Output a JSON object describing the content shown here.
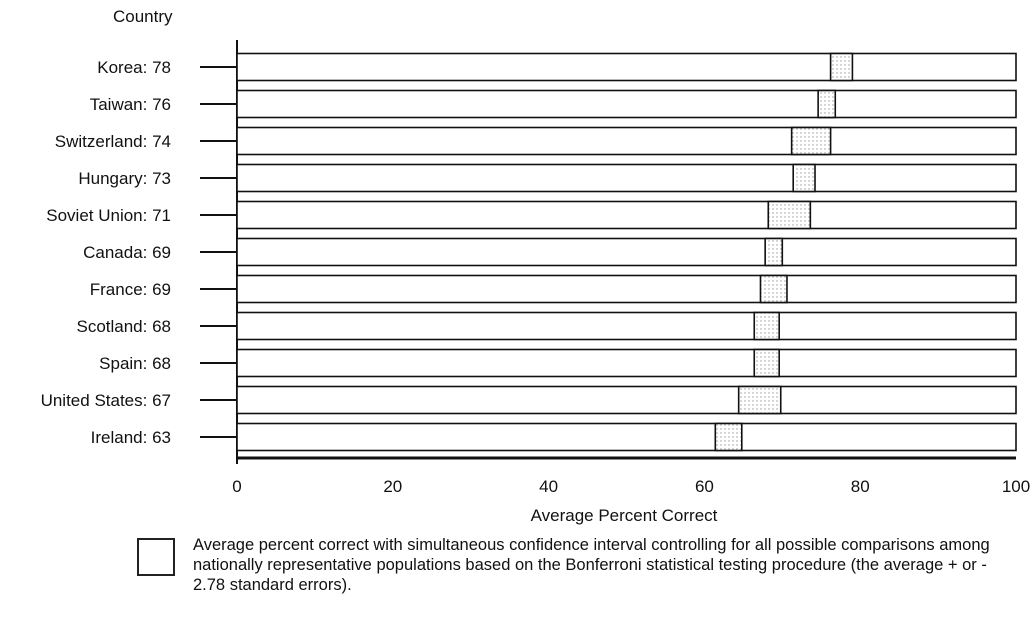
{
  "chart_data": {
    "type": "bar",
    "ylabel": "Country",
    "xlabel": "Average Percent Correct",
    "xlim": [
      0,
      100
    ],
    "xticks": [
      "0",
      "20",
      "40",
      "60",
      "80",
      "100"
    ],
    "categories": [
      {
        "label": "Korea: 78",
        "mean": 78,
        "low": 76.2,
        "high": 79.0
      },
      {
        "label": "Taiwan: 76",
        "mean": 76,
        "low": 74.6,
        "high": 76.8
      },
      {
        "label": "Switzerland: 74",
        "mean": 74,
        "low": 71.2,
        "high": 76.2
      },
      {
        "label": "Hungary: 73",
        "mean": 73,
        "low": 71.4,
        "high": 74.2
      },
      {
        "label": "Soviet Union: 71",
        "mean": 71,
        "low": 68.2,
        "high": 73.6
      },
      {
        "label": "Canada: 69",
        "mean": 69,
        "low": 67.8,
        "high": 70.0
      },
      {
        "label": "France: 69",
        "mean": 69,
        "low": 67.2,
        "high": 70.6
      },
      {
        "label": "Scotland: 68",
        "mean": 68,
        "low": 66.4,
        "high": 69.6
      },
      {
        "label": "Spain: 68",
        "mean": 68,
        "low": 66.4,
        "high": 69.6
      },
      {
        "label": "United States: 67",
        "mean": 67,
        "low": 64.4,
        "high": 69.8
      },
      {
        "label": "Ireland: 63",
        "mean": 63,
        "low": 61.4,
        "high": 64.8
      }
    ],
    "grid": false,
    "legend": "Average percent correct with simultaneous confidence interval controlling for all possible comparisons among nationally representative populations based on the Bonferroni statistical testing procedure (the average + or - 2.78 standard errors)."
  }
}
